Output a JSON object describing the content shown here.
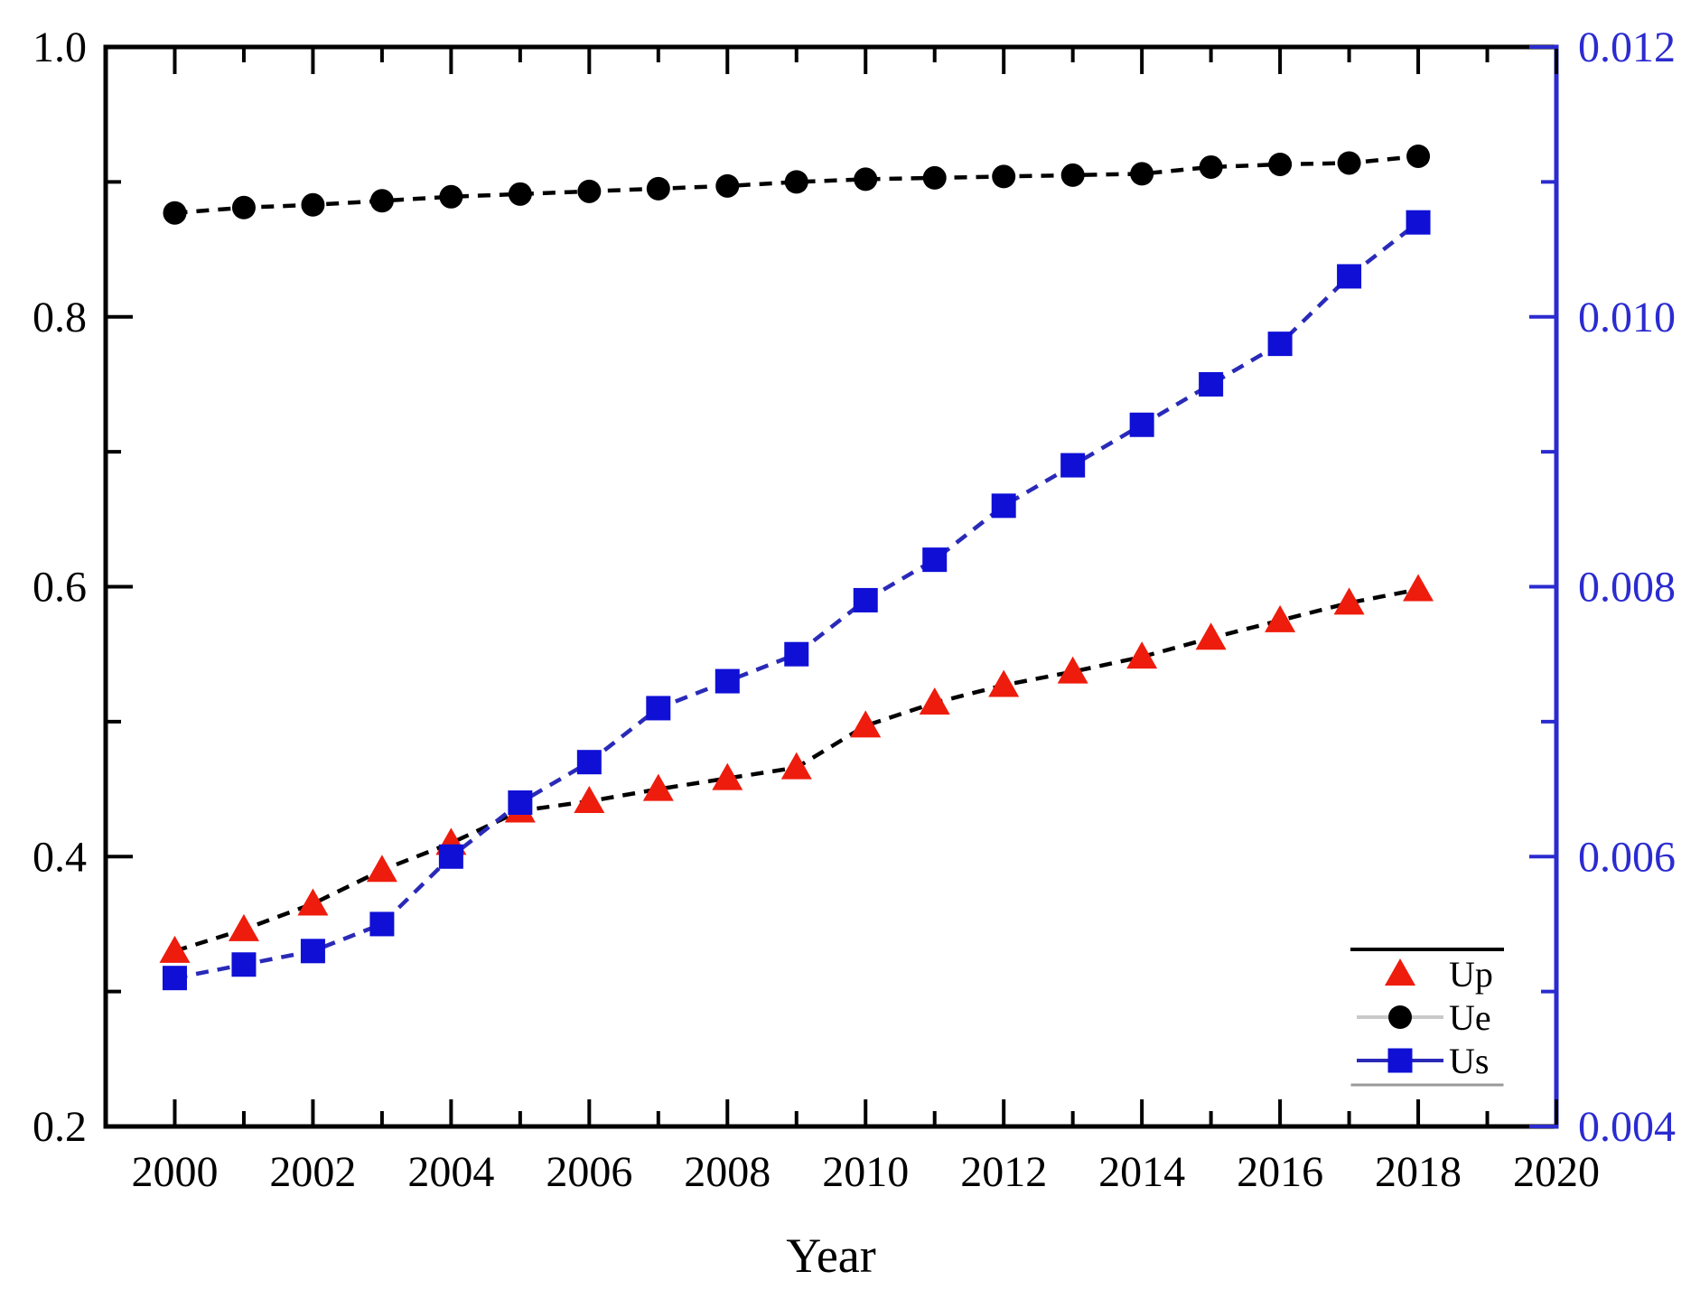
{
  "chart_data": {
    "type": "line",
    "title": "",
    "xlabel": "Year",
    "x": [
      2000,
      2001,
      2002,
      2003,
      2004,
      2005,
      2006,
      2007,
      2008,
      2009,
      2010,
      2011,
      2012,
      2013,
      2014,
      2015,
      2016,
      2017,
      2018
    ],
    "x_axis": {
      "min": 1999,
      "max": 2020,
      "major_tick_values": [
        2000,
        2002,
        2004,
        2006,
        2008,
        2010,
        2012,
        2014,
        2016,
        2018,
        2020
      ],
      "major_tick_labels": [
        "2000",
        "2002",
        "2004",
        "2006",
        "2008",
        "2010",
        "2012",
        "2014",
        "2016",
        "2018",
        "2020"
      ],
      "minor_tick_values": [
        2001,
        2003,
        2005,
        2007,
        2009,
        2011,
        2013,
        2015,
        2017,
        2019
      ],
      "color": "#000000"
    },
    "left_axis": {
      "min": 0.2,
      "max": 1.0,
      "major_tick_values": [
        0.2,
        0.4,
        0.6,
        0.8,
        1.0
      ],
      "major_tick_labels": [
        "0.2",
        "0.4",
        "0.6",
        "0.8",
        "1.0"
      ],
      "minor_tick_values": [
        0.3,
        0.5,
        0.7,
        0.9
      ],
      "color": "#000000"
    },
    "right_axis": {
      "min": 0.004,
      "max": 0.012,
      "major_tick_values": [
        0.004,
        0.006,
        0.008,
        0.01,
        0.012
      ],
      "major_tick_labels": [
        "0.004",
        "0.006",
        "0.008",
        "0.010",
        "0.012"
      ],
      "minor_tick_values": [
        0.005,
        0.007,
        0.009,
        0.011
      ],
      "color": "#2b2bd0"
    },
    "series": [
      {
        "name": "Up",
        "axis": "left",
        "marker": "triangle",
        "marker_color": "#ee1c0c",
        "line_color": "#000000",
        "line_style": "dashed",
        "legend_line_color": "none",
        "values": [
          0.33,
          0.346,
          0.365,
          0.39,
          0.41,
          0.434,
          0.441,
          0.45,
          0.458,
          0.466,
          0.497,
          0.514,
          0.527,
          0.537,
          0.548,
          0.562,
          0.575,
          0.588,
          0.598
        ]
      },
      {
        "name": "Ue",
        "axis": "left",
        "marker": "circle",
        "marker_color": "#000000",
        "line_color": "#000000",
        "line_style": "dashed",
        "legend_line_color": "#c9c9c9",
        "values": [
          0.877,
          0.881,
          0.883,
          0.886,
          0.889,
          0.891,
          0.893,
          0.895,
          0.897,
          0.9,
          0.902,
          0.903,
          0.904,
          0.905,
          0.906,
          0.911,
          0.913,
          0.914,
          0.919
        ]
      },
      {
        "name": "Us",
        "axis": "right",
        "marker": "square",
        "marker_color": "#0f0fd6",
        "line_color": "#2a2ab8",
        "line_style": "dashed",
        "legend_line_color": "#2a2ab8",
        "values": [
          0.0051,
          0.0052,
          0.0053,
          0.0055,
          0.006,
          0.0064,
          0.0067,
          0.0071,
          0.0073,
          0.0075,
          0.0079,
          0.0082,
          0.0086,
          0.0089,
          0.0092,
          0.0095,
          0.0098,
          0.0103,
          0.0107
        ]
      }
    ],
    "legend": {
      "position": "bottom-right",
      "entries": [
        "Up",
        "Ue",
        "Us"
      ]
    }
  }
}
